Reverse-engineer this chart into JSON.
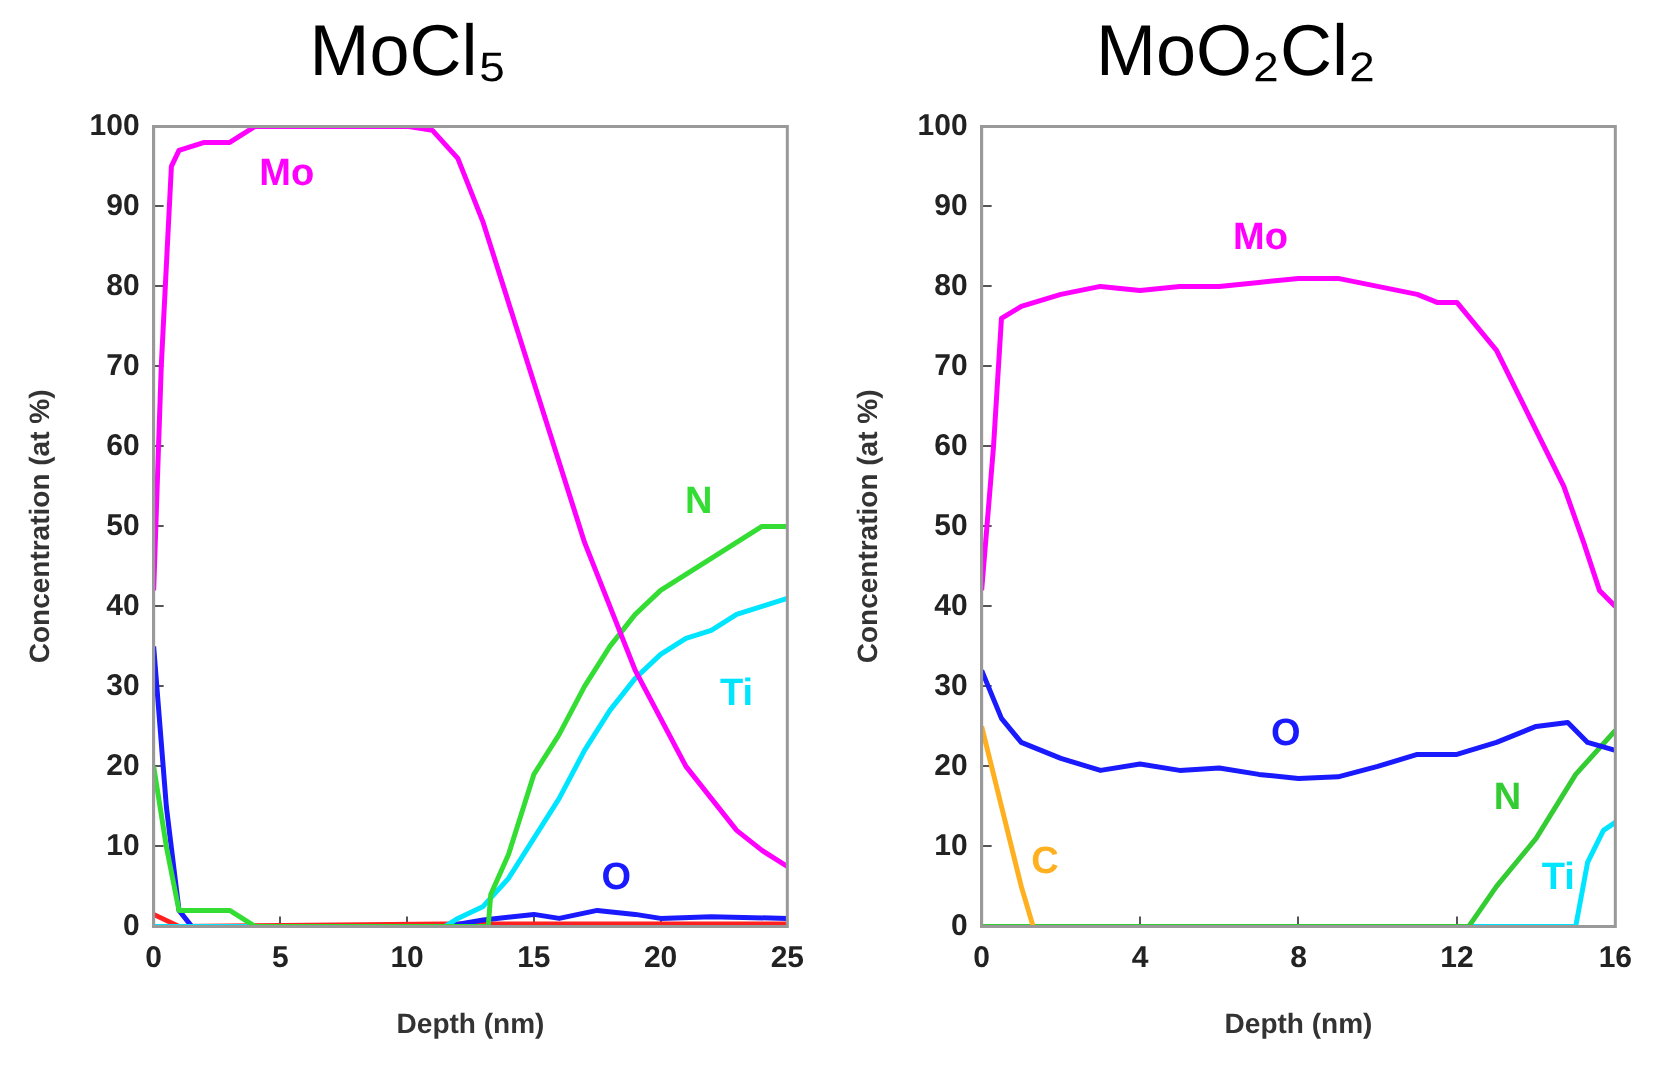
{
  "chart_data": [
    {
      "type": "line",
      "title": "MoCl₅",
      "xlabel": "Depth (nm)",
      "ylabel": "Concentration (at %)",
      "xlim": [
        0,
        25
      ],
      "xticks": [
        0,
        5,
        10,
        15,
        20,
        25
      ],
      "ylim": [
        0,
        100
      ],
      "yticks": [
        0,
        10,
        20,
        30,
        40,
        50,
        60,
        70,
        80,
        90,
        100
      ],
      "marker": "none",
      "series": [
        {
          "name": "Mo",
          "color": "#ff00ff",
          "x": [
            0,
            0.3,
            0.7,
            1,
            2,
            3,
            4,
            5,
            10,
            11,
            12,
            13,
            14,
            15,
            16,
            17,
            18,
            19,
            20,
            21,
            22,
            23,
            24,
            25
          ],
          "values": [
            42,
            70,
            95,
            97,
            98,
            98,
            100,
            100,
            100,
            99.5,
            96,
            88,
            78,
            68,
            58,
            48,
            40,
            32,
            26,
            20,
            16,
            12,
            9.5,
            7.5
          ]
        },
        {
          "name": "N",
          "color": "#33dd33",
          "x": [
            0,
            0.5,
            1,
            2,
            3,
            3.5,
            4,
            13.2,
            13.3,
            14,
            15,
            16,
            17,
            18,
            19,
            20,
            21,
            22,
            23,
            24,
            25
          ],
          "values": [
            20,
            10,
            2,
            2,
            2,
            1,
            0,
            0,
            4,
            9,
            19,
            24,
            30,
            35,
            39,
            42,
            44,
            46,
            48,
            50,
            50
          ]
        },
        {
          "name": "Ti",
          "color": "#00e5ff",
          "x": [
            0,
            11.5,
            12,
            13,
            14,
            15,
            16,
            17,
            18,
            19,
            20,
            21,
            22,
            23,
            24,
            25
          ],
          "values": [
            0,
            0,
            1,
            2.5,
            6,
            11,
            16,
            22,
            27,
            31,
            34,
            36,
            37,
            39,
            40,
            41
          ]
        },
        {
          "name": "O",
          "color": "#1a1aff",
          "x": [
            0,
            0.5,
            1,
            1.5,
            11.5,
            13,
            15,
            16,
            17.5,
            19,
            20,
            22,
            25
          ],
          "values": [
            35,
            15,
            2,
            0,
            0,
            0.8,
            1.5,
            1,
            2,
            1.5,
            1,
            1.2,
            1
          ]
        },
        {
          "color": "#ff2020",
          "x": [
            0,
            1,
            11.5,
            25
          ],
          "values": [
            1.5,
            0,
            0.3,
            0.3
          ]
        }
      ]
    },
    {
      "type": "line",
      "title": "MoO₂Cl₂",
      "xlabel": "Depth (nm)",
      "ylabel": "Concentration (at %)",
      "xlim": [
        0,
        16
      ],
      "xticks": [
        0,
        4,
        8,
        12,
        16
      ],
      "ylim": [
        0,
        100
      ],
      "yticks": [
        0,
        10,
        20,
        30,
        40,
        50,
        60,
        70,
        80,
        90,
        100
      ],
      "marker": "none",
      "series": [
        {
          "name": "Mo",
          "color": "#ff00ff",
          "x": [
            0,
            0.3,
            0.5,
            1,
            2,
            3,
            4,
            5,
            6,
            7,
            8,
            9,
            10,
            11,
            11.5,
            12,
            13,
            14,
            14.7,
            15.2,
            15.6,
            16
          ],
          "values": [
            42,
            60,
            76,
            77.5,
            79,
            80,
            79.5,
            80,
            80,
            80.5,
            81,
            81,
            80,
            79,
            78,
            78,
            72,
            62,
            55,
            48,
            42,
            40
          ]
        },
        {
          "name": "O",
          "color": "#1a1aff",
          "x": [
            0,
            0.5,
            1,
            2,
            3,
            4,
            5,
            6,
            7,
            8,
            9,
            10,
            11,
            12,
            13,
            14,
            14.8,
            15.3,
            16
          ],
          "values": [
            32,
            26,
            23,
            21,
            19.5,
            20.3,
            19.5,
            19.8,
            19,
            18.5,
            18.7,
            20,
            21.5,
            21.5,
            23,
            25,
            25.5,
            23,
            22
          ]
        },
        {
          "name": "C",
          "color": "#ffb020",
          "x": [
            0,
            0.5,
            1,
            1.3
          ],
          "values": [
            25,
            15,
            5,
            0
          ]
        },
        {
          "name": "N",
          "color": "#33cc33",
          "x": [
            0,
            12.3,
            13,
            14,
            15,
            16
          ],
          "values": [
            0,
            0,
            5,
            11,
            19,
            24.5
          ]
        },
        {
          "name": "Ti",
          "color": "#00e5ff",
          "x": [
            12.3,
            15,
            15.3,
            15.7,
            16
          ],
          "values": [
            0,
            0,
            8,
            12,
            13
          ]
        }
      ]
    }
  ]
}
